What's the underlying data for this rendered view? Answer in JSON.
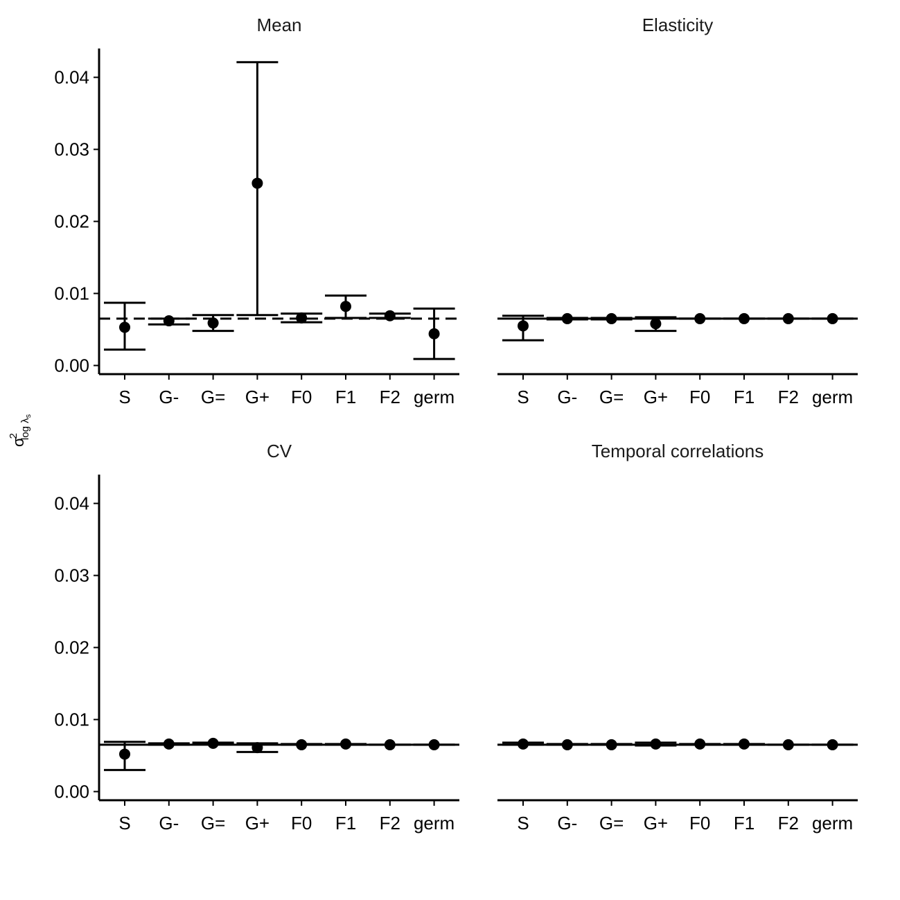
{
  "chart_data": {
    "type": "scatter",
    "description_mark": "point estimates with error bars (facetted)",
    "y_axis_label": {
      "symbol": "σ",
      "superscript": "2",
      "subscript": "log λ",
      "subscript_sub": "s"
    },
    "categories": [
      "S",
      "G-",
      "G=",
      "G+",
      "F0",
      "F1",
      "F2",
      "germ"
    ],
    "ylim": [
      -0.0012,
      0.044
    ],
    "yticks": [
      0.0,
      0.01,
      0.02,
      0.03,
      0.04
    ],
    "ytick_labels": [
      "0.00",
      "0.01",
      "0.02",
      "0.03",
      "0.04"
    ],
    "grid": false,
    "facets": [
      {
        "title": "Mean",
        "reference": {
          "value": 0.0065,
          "style": "dashed"
        },
        "points": [
          {
            "y": 0.0053,
            "lo": 0.0022,
            "hi": 0.0087
          },
          {
            "y": 0.0062,
            "lo": 0.0057,
            "hi": 0.0065
          },
          {
            "y": 0.0059,
            "lo": 0.0048,
            "hi": 0.007
          },
          {
            "y": 0.0253,
            "lo": 0.007,
            "hi": 0.0421
          },
          {
            "y": 0.0066,
            "lo": 0.006,
            "hi": 0.0072
          },
          {
            "y": 0.0082,
            "lo": 0.0066,
            "hi": 0.0097
          },
          {
            "y": 0.0069,
            "lo": 0.0066,
            "hi": 0.0072
          },
          {
            "y": 0.0044,
            "lo": 0.0009,
            "hi": 0.0079
          }
        ]
      },
      {
        "title": "Elasticity",
        "reference": {
          "value": 0.0065,
          "style": "solid"
        },
        "points": [
          {
            "y": 0.0055,
            "lo": 0.0035,
            "hi": 0.0069
          },
          {
            "y": 0.0065,
            "lo": 0.0064,
            "hi": 0.0066
          },
          {
            "y": 0.0065,
            "lo": 0.0064,
            "hi": 0.0066
          },
          {
            "y": 0.0058,
            "lo": 0.0048,
            "hi": 0.0067
          },
          {
            "y": 0.0065,
            "lo": 0.0065,
            "hi": 0.0065
          },
          {
            "y": 0.0065,
            "lo": 0.0065,
            "hi": 0.0065
          },
          {
            "y": 0.0065,
            "lo": 0.0065,
            "hi": 0.0065
          },
          {
            "y": 0.0065,
            "lo": 0.0065,
            "hi": 0.0065
          }
        ]
      },
      {
        "title": "CV",
        "reference": {
          "value": 0.0065,
          "style": "solid"
        },
        "points": [
          {
            "y": 0.0052,
            "lo": 0.003,
            "hi": 0.0069
          },
          {
            "y": 0.0066,
            "lo": 0.0065,
            "hi": 0.0067
          },
          {
            "y": 0.0067,
            "lo": 0.0066,
            "hi": 0.0068
          },
          {
            "y": 0.0061,
            "lo": 0.0055,
            "hi": 0.0067
          },
          {
            "y": 0.0065,
            "lo": 0.0065,
            "hi": 0.0066
          },
          {
            "y": 0.0066,
            "lo": 0.0065,
            "hi": 0.0066
          },
          {
            "y": 0.0065,
            "lo": 0.0065,
            "hi": 0.0065
          },
          {
            "y": 0.0065,
            "lo": 0.0065,
            "hi": 0.0065
          }
        ]
      },
      {
        "title": "Temporal correlations",
        "reference": {
          "value": 0.0065,
          "style": "solid"
        },
        "points": [
          {
            "y": 0.0066,
            "lo": 0.0065,
            "hi": 0.0068
          },
          {
            "y": 0.0065,
            "lo": 0.0065,
            "hi": 0.0066
          },
          {
            "y": 0.0065,
            "lo": 0.0065,
            "hi": 0.0066
          },
          {
            "y": 0.0066,
            "lo": 0.0064,
            "hi": 0.0068
          },
          {
            "y": 0.0066,
            "lo": 0.0065,
            "hi": 0.0066
          },
          {
            "y": 0.0066,
            "lo": 0.0065,
            "hi": 0.0066
          },
          {
            "y": 0.0065,
            "lo": 0.0065,
            "hi": 0.0065
          },
          {
            "y": 0.0065,
            "lo": 0.0065,
            "hi": 0.0065
          }
        ]
      }
    ]
  }
}
